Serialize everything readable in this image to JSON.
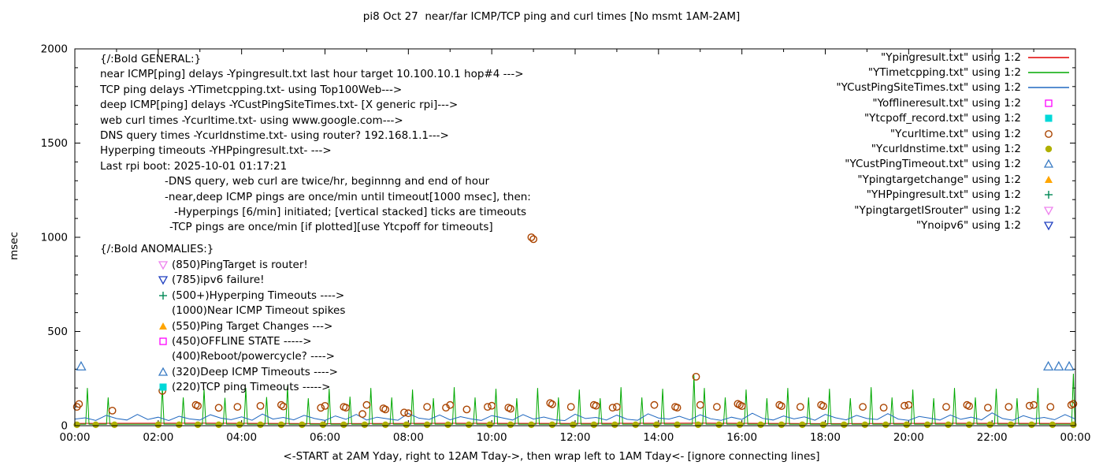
{
  "general": {
    "heading": "{/:Bold GENERAL:}",
    "lines": [
      "near ICMP[ping] delays -Ypingresult.txt last hour target 10.100.10.1 hop#4 --->",
      "TCP ping delays -YTimetcpping.txt- using Top100Web--->",
      "deep ICMP[ping] delays -YCustPingSiteTimes.txt- [X generic rpi]--->",
      "web curl times -Ycurltime.txt- using www.google.com--->",
      "DNS query times -Ycurldnstime.txt- using router? 192.168.1.1--->",
      "Hyperping timeouts -YHPpingresult.txt- --->",
      "Last rpi boot: 2025-10-01 01:17:21",
      "-DNS query, web curl are twice/hr, beginnng and end of hour",
      "-near,deep ICMP pings are once/min until timeout[1000 msec], then:",
      "-Hyperpings [6/min] initiated; [vertical stacked] ticks are timeouts",
      "-TCP pings are once/min [if plotted][use Ytcpoff for timeouts]"
    ]
  },
  "anomalies": {
    "heading": "{/:Bold ANOMALIES:}",
    "items": [
      {
        "marker": "tri-down-open",
        "color": "#ee82ee",
        "text": "(850)PingTarget is router!"
      },
      {
        "marker": "tri-down-open",
        "color": "#2040c0",
        "text": "(785)ipv6 failure!"
      },
      {
        "marker": "plus",
        "color": "#008855",
        "text": "(500+)Hyperping Timeouts ---->"
      },
      {
        "marker": "none",
        "color": "",
        "text": "(1000)Near ICMP Timeout spikes"
      },
      {
        "marker": "tri-up-filled",
        "color": "#ffa500",
        "text": "(550)Ping Target Changes --->"
      },
      {
        "marker": "square-open",
        "color": "#ff00ff",
        "text": "(450)OFFLINE STATE ----->"
      },
      {
        "marker": "none",
        "color": "",
        "text": "(400)Reboot/powercycle? ---->"
      },
      {
        "marker": "tri-up-open",
        "color": "#3b7cc4",
        "text": "(320)Deep ICMP Timeouts ---->"
      },
      {
        "marker": "square-filled",
        "color": "#00d8d8",
        "text": "(220)TCP ping Timeouts ----->"
      }
    ]
  },
  "legend": [
    {
      "label": "\"Ypingresult.txt\" using 1:2",
      "type": "line",
      "color": "#e00000"
    },
    {
      "label": "\"YTimetcpping.txt\" using 1:2",
      "type": "line",
      "color": "#00a800"
    },
    {
      "label": "\"YCustPingSiteTimes.txt\" using 1:2",
      "type": "line",
      "color": "#2068c0"
    },
    {
      "label": "\"Yofflineresult.txt\" using 1:2",
      "type": "square-open",
      "color": "#ff00ff"
    },
    {
      "label": "\"Ytcpoff_record.txt\" using 1:2",
      "type": "square-filled",
      "color": "#00d8d8"
    },
    {
      "label": "\"Ycurltime.txt\" using 1:2",
      "type": "circle-open",
      "color": "#aa4400"
    },
    {
      "label": "\"Ycurldnstime.txt\" using 1:2",
      "type": "circle-filled",
      "color": "#b0b000"
    },
    {
      "label": "\"YCustPingTimeout.txt\" using 1:2",
      "type": "tri-up-open",
      "color": "#3b7cc4"
    },
    {
      "label": "\"Ypingtargetchange\" using 1:2",
      "type": "tri-up-filled",
      "color": "#ffa500"
    },
    {
      "label": "\"YHPpingresult.txt\" using 1:2",
      "type": "plus",
      "color": "#008855"
    },
    {
      "label": "\"YpingtargetISrouter\" using 1:2",
      "type": "tri-down-open",
      "color": "#ee82ee"
    },
    {
      "label": "\"Ynoipv6\" using 1:2",
      "type": "tri-down-open",
      "color": "#2040c0"
    }
  ],
  "chart_data": {
    "type": "line",
    "title": "pi8 Oct 27  near/far ICMP/TCP ping and curl times [No msmt 1AM-2AM]",
    "xlabel": "<-START at 2AM Yday, right to 12AM Tday->, then wrap left to 1AM Tday<- [ignore connecting lines]",
    "ylabel": "msec",
    "xlim": [
      0,
      24
    ],
    "ylim": [
      0,
      2000
    ],
    "xtick_labels": [
      "00:00",
      "02:00",
      "04:00",
      "06:00",
      "08:00",
      "10:00",
      "12:00",
      "14:00",
      "16:00",
      "18:00",
      "20:00",
      "22:00",
      "00:00"
    ],
    "ytick_values": [
      0,
      500,
      1000,
      1500,
      2000
    ],
    "grid": false,
    "legend_position": "top-right",
    "series": [
      {
        "name": "Ypingresult.txt",
        "type": "line",
        "color": "#e00000",
        "points": [
          [
            0,
            12
          ],
          [
            3,
            14
          ],
          [
            6,
            11
          ],
          [
            9,
            13
          ],
          [
            12,
            12
          ],
          [
            15,
            14
          ],
          [
            18,
            11
          ],
          [
            21,
            13
          ],
          [
            24,
            12
          ]
        ]
      },
      {
        "name": "YTimetcpping.txt",
        "type": "line-spikes",
        "color": "#00a800",
        "baseline": 8,
        "spikes": [
          [
            0.3,
            200
          ],
          [
            0.8,
            150
          ],
          [
            2.1,
            205
          ],
          [
            2.6,
            150
          ],
          [
            3.1,
            195
          ],
          [
            3.6,
            148
          ],
          [
            4.1,
            200
          ],
          [
            4.6,
            152
          ],
          [
            5.1,
            210
          ],
          [
            5.6,
            146
          ],
          [
            6.1,
            196
          ],
          [
            6.6,
            154
          ],
          [
            7.1,
            200
          ],
          [
            7.6,
            150
          ],
          [
            8.1,
            192
          ],
          [
            8.6,
            146
          ],
          [
            9.1,
            204
          ],
          [
            9.6,
            150
          ],
          [
            10.1,
            196
          ],
          [
            10.6,
            146
          ],
          [
            11.1,
            200
          ],
          [
            11.6,
            150
          ],
          [
            12.1,
            192
          ],
          [
            12.6,
            146
          ],
          [
            13.1,
            204
          ],
          [
            13.6,
            150
          ],
          [
            14.1,
            196
          ],
          [
            14.85,
            268
          ],
          [
            15.1,
            200
          ],
          [
            15.6,
            150
          ],
          [
            16.1,
            192
          ],
          [
            16.6,
            146
          ],
          [
            17.1,
            200
          ],
          [
            17.6,
            150
          ],
          [
            18.1,
            196
          ],
          [
            18.6,
            146
          ],
          [
            19.1,
            204
          ],
          [
            19.6,
            150
          ],
          [
            20.1,
            192
          ],
          [
            20.6,
            146
          ],
          [
            21.1,
            200
          ],
          [
            21.6,
            150
          ],
          [
            22.1,
            196
          ],
          [
            22.6,
            146
          ],
          [
            23.1,
            200
          ],
          [
            23.95,
            276
          ]
        ]
      },
      {
        "name": "YCustPingSiteTimes.txt",
        "type": "line",
        "color": "#2068c0",
        "x_step": 0.25,
        "values": [
          35,
          42,
          28,
          55,
          38,
          30,
          60,
          33,
          45,
          27,
          50,
          36,
          30,
          58,
          40,
          32,
          47,
          29,
          62,
          35,
          44,
          31,
          55,
          38,
          28,
          52,
          34,
          60,
          30,
          45,
          37,
          29,
          65,
          40,
          33,
          57,
          31,
          48,
          36,
          28,
          54,
          42,
          30,
          59,
          35,
          46,
          32,
          27,
          61,
          38,
          44,
          30,
          56,
          34,
          29,
          63,
          41,
          35,
          50,
          31,
          58,
          37,
          28,
          45,
          33,
          66,
          39,
          30,
          52,
          36,
          47,
          29,
          60,
          42,
          31,
          55,
          38,
          33,
          64,
          35,
          28,
          49,
          40,
          30,
          57,
          34,
          45,
          31,
          68,
          38,
          29,
          53,
          36,
          44,
          32,
          59,
          35
        ]
      },
      {
        "name": "Ycurltime.txt",
        "type": "circle-open",
        "color": "#aa4400",
        "points": [
          [
            0.05,
            100
          ],
          [
            0.1,
            115
          ],
          [
            0.9,
            80
          ],
          [
            2.1,
            185
          ],
          [
            2.9,
            110
          ],
          [
            2.95,
            105
          ],
          [
            3.45,
            95
          ],
          [
            3.9,
            100
          ],
          [
            4.45,
            105
          ],
          [
            4.95,
            110
          ],
          [
            5.0,
            102
          ],
          [
            5.9,
            95
          ],
          [
            6.0,
            105
          ],
          [
            6.45,
            100
          ],
          [
            6.5,
            96
          ],
          [
            6.9,
            62
          ],
          [
            7.0,
            110
          ],
          [
            7.4,
            92
          ],
          [
            7.45,
            86
          ],
          [
            7.9,
            70
          ],
          [
            8.0,
            66
          ],
          [
            8.45,
            100
          ],
          [
            8.9,
            96
          ],
          [
            9.0,
            110
          ],
          [
            9.4,
            86
          ],
          [
            9.9,
            100
          ],
          [
            10.0,
            106
          ],
          [
            10.4,
            96
          ],
          [
            10.45,
            90
          ],
          [
            10.95,
            1000
          ],
          [
            11.0,
            990
          ],
          [
            11.4,
            120
          ],
          [
            11.45,
            114
          ],
          [
            11.9,
            100
          ],
          [
            12.45,
            110
          ],
          [
            12.5,
            106
          ],
          [
            12.9,
            96
          ],
          [
            13.0,
            100
          ],
          [
            13.9,
            110
          ],
          [
            14.4,
            100
          ],
          [
            14.45,
            96
          ],
          [
            14.9,
            260
          ],
          [
            15.0,
            110
          ],
          [
            15.4,
            100
          ],
          [
            15.9,
            116
          ],
          [
            15.95,
            110
          ],
          [
            16.0,
            104
          ],
          [
            16.9,
            110
          ],
          [
            16.95,
            104
          ],
          [
            17.4,
            100
          ],
          [
            17.9,
            110
          ],
          [
            17.95,
            104
          ],
          [
            18.9,
            100
          ],
          [
            19.4,
            96
          ],
          [
            19.9,
            106
          ],
          [
            20.0,
            110
          ],
          [
            20.9,
            100
          ],
          [
            21.4,
            110
          ],
          [
            21.45,
            104
          ],
          [
            21.9,
            96
          ],
          [
            22.4,
            100
          ],
          [
            22.9,
            106
          ],
          [
            23.0,
            110
          ],
          [
            23.4,
            100
          ],
          [
            23.9,
            110
          ],
          [
            23.95,
            116
          ]
        ]
      },
      {
        "name": "Ycurldnstime.txt",
        "type": "circle-filled",
        "color": "#b0b000",
        "y": 5,
        "x": [
          0.05,
          0.5,
          0.95,
          2.0,
          2.5,
          2.95,
          3.45,
          3.95,
          4.45,
          4.95,
          5.45,
          5.95,
          6.45,
          6.95,
          7.45,
          7.95,
          8.45,
          8.95,
          9.45,
          9.95,
          10.45,
          10.95,
          11.45,
          11.95,
          12.45,
          12.95,
          13.45,
          13.95,
          14.45,
          14.95,
          15.45,
          15.95,
          16.45,
          16.95,
          17.45,
          17.95,
          18.45,
          18.95,
          19.45,
          19.95,
          20.45,
          20.95,
          21.45,
          21.95,
          22.45,
          22.95,
          23.45,
          23.95
        ]
      },
      {
        "name": "YCustPingTimeout.txt",
        "type": "tri-up-open",
        "color": "#3b7cc4",
        "points": [
          [
            0.15,
            315
          ],
          [
            23.35,
            315
          ],
          [
            23.6,
            315
          ],
          [
            23.85,
            315
          ]
        ]
      }
    ]
  }
}
